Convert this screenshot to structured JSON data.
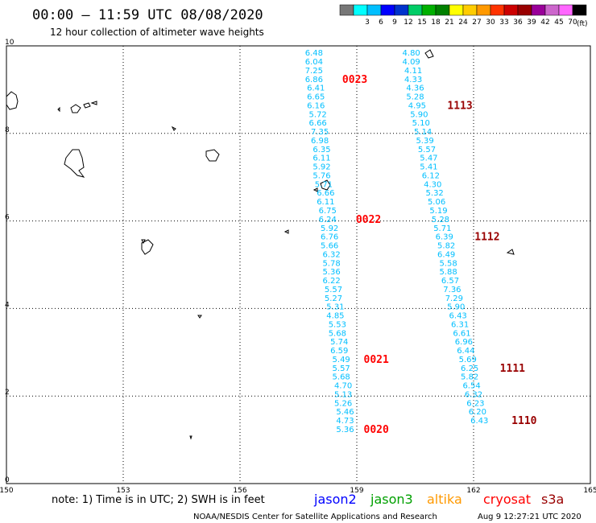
{
  "header": {
    "title": "00:00 – 11:59 UTC 08/08/2020",
    "subtitle": "12 hour collection of altimeter wave heights"
  },
  "legend": {
    "unit": "(ft)",
    "scale": [
      {
        "label": "",
        "color": "#777777"
      },
      {
        "label": "3",
        "color": "#00ffff"
      },
      {
        "label": "6",
        "color": "#00bfff"
      },
      {
        "label": "9",
        "color": "#0000ff"
      },
      {
        "label": "12",
        "color": "#0033cc"
      },
      {
        "label": "15",
        "color": "#00cc66"
      },
      {
        "label": "18",
        "color": "#00b000"
      },
      {
        "label": "21",
        "color": "#008000"
      },
      {
        "label": "24",
        "color": "#ffff00"
      },
      {
        "label": "27",
        "color": "#ffcc00"
      },
      {
        "label": "30",
        "color": "#ff9900"
      },
      {
        "label": "33",
        "color": "#ff3300"
      },
      {
        "label": "36",
        "color": "#cc0000"
      },
      {
        "label": "39",
        "color": "#990000"
      },
      {
        "label": "42",
        "color": "#990099"
      },
      {
        "label": "45",
        "color": "#cc66cc"
      },
      {
        "label": "70",
        "color": "#ff66ff"
      },
      {
        "label": "",
        "color": "#000000"
      }
    ]
  },
  "axes": {
    "x_ticks": [
      "150",
      "153",
      "156",
      "159",
      "162",
      "165"
    ],
    "y_ticks": [
      "0",
      "2",
      "4",
      "6",
      "8",
      "10"
    ],
    "x_range": [
      150,
      165
    ],
    "y_range": [
      0,
      10
    ]
  },
  "colors": {
    "value_text": "#00bfff",
    "time_west": "#ff0000",
    "time_east": "#990000"
  },
  "tracks": {
    "west": [
      {
        "v": "6.48",
        "x": 157.9,
        "y": 9.85
      },
      {
        "v": "6.04",
        "x": 157.9,
        "y": 9.65
      },
      {
        "v": "7.25",
        "x": 157.9,
        "y": 9.45
      },
      {
        "v": "6.86",
        "x": 157.9,
        "y": 9.25
      },
      {
        "v": "6.41",
        "x": 157.95,
        "y": 9.05
      },
      {
        "v": "6.65",
        "x": 157.95,
        "y": 8.85
      },
      {
        "v": "6.16",
        "x": 157.95,
        "y": 8.65
      },
      {
        "v": "5.72",
        "x": 158.0,
        "y": 8.45
      },
      {
        "v": "6.66",
        "x": 158.0,
        "y": 8.25
      },
      {
        "v": "7.35",
        "x": 158.05,
        "y": 8.05
      },
      {
        "v": "6.98",
        "x": 158.05,
        "y": 7.85
      },
      {
        "v": "6.35",
        "x": 158.1,
        "y": 7.65
      },
      {
        "v": "6.11",
        "x": 158.1,
        "y": 7.45
      },
      {
        "v": "5.92",
        "x": 158.1,
        "y": 7.25
      },
      {
        "v": "5.76",
        "x": 158.1,
        "y": 7.05
      },
      {
        "v": "5.71",
        "x": 158.15,
        "y": 6.85
      },
      {
        "v": "6.66",
        "x": 158.2,
        "y": 6.65
      },
      {
        "v": "6.11",
        "x": 158.2,
        "y": 6.45
      },
      {
        "v": "6.75",
        "x": 158.25,
        "y": 6.25
      },
      {
        "v": "6.24",
        "x": 158.25,
        "y": 6.05
      },
      {
        "v": "5.92",
        "x": 158.3,
        "y": 5.85
      },
      {
        "v": "6.76",
        "x": 158.3,
        "y": 5.65
      },
      {
        "v": "5.66",
        "x": 158.3,
        "y": 5.45
      },
      {
        "v": "6.32",
        "x": 158.35,
        "y": 5.25
      },
      {
        "v": "5.78",
        "x": 158.35,
        "y": 5.05
      },
      {
        "v": "5.36",
        "x": 158.35,
        "y": 4.85
      },
      {
        "v": "6.22",
        "x": 158.35,
        "y": 4.65
      },
      {
        "v": "5.57",
        "x": 158.4,
        "y": 4.45
      },
      {
        "v": "5.27",
        "x": 158.4,
        "y": 4.25
      },
      {
        "v": "5.31",
        "x": 158.45,
        "y": 4.05
      },
      {
        "v": "4.85",
        "x": 158.45,
        "y": 3.85
      },
      {
        "v": "5.53",
        "x": 158.5,
        "y": 3.65
      },
      {
        "v": "5.68",
        "x": 158.5,
        "y": 3.45
      },
      {
        "v": "5.74",
        "x": 158.55,
        "y": 3.25
      },
      {
        "v": "6.59",
        "x": 158.55,
        "y": 3.05
      },
      {
        "v": "5.49",
        "x": 158.6,
        "y": 2.85
      },
      {
        "v": "5.57",
        "x": 158.6,
        "y": 2.65
      },
      {
        "v": "5.68",
        "x": 158.6,
        "y": 2.45
      },
      {
        "v": "4.70",
        "x": 158.65,
        "y": 2.25
      },
      {
        "v": "5.13",
        "x": 158.65,
        "y": 2.05
      },
      {
        "v": "5.26",
        "x": 158.65,
        "y": 1.85
      },
      {
        "v": "5.46",
        "x": 158.7,
        "y": 1.65
      },
      {
        "v": "4.73",
        "x": 158.7,
        "y": 1.45
      },
      {
        "v": "5.36",
        "x": 158.7,
        "y": 1.25
      }
    ],
    "east": [
      {
        "v": "4.80",
        "x": 160.4,
        "y": 9.85
      },
      {
        "v": "4.09",
        "x": 160.4,
        "y": 9.65
      },
      {
        "v": "4.11",
        "x": 160.45,
        "y": 9.45
      },
      {
        "v": "4.33",
        "x": 160.45,
        "y": 9.25
      },
      {
        "v": "4.36",
        "x": 160.5,
        "y": 9.05
      },
      {
        "v": "5.28",
        "x": 160.5,
        "y": 8.85
      },
      {
        "v": "4.95",
        "x": 160.55,
        "y": 8.65
      },
      {
        "v": "5.90",
        "x": 160.6,
        "y": 8.45
      },
      {
        "v": "5.10",
        "x": 160.65,
        "y": 8.25
      },
      {
        "v": "5.14",
        "x": 160.7,
        "y": 8.05
      },
      {
        "v": "5.39",
        "x": 160.75,
        "y": 7.85
      },
      {
        "v": "5.57",
        "x": 160.8,
        "y": 7.65
      },
      {
        "v": "5.47",
        "x": 160.85,
        "y": 7.45
      },
      {
        "v": "5.41",
        "x": 160.85,
        "y": 7.25
      },
      {
        "v": "6.12",
        "x": 160.9,
        "y": 7.05
      },
      {
        "v": "4.30",
        "x": 160.95,
        "y": 6.85
      },
      {
        "v": "5.32",
        "x": 161.0,
        "y": 6.65
      },
      {
        "v": "5.06",
        "x": 161.05,
        "y": 6.45
      },
      {
        "v": "5.19",
        "x": 161.1,
        "y": 6.25
      },
      {
        "v": "5.28",
        "x": 161.15,
        "y": 6.05
      },
      {
        "v": "5.71",
        "x": 161.2,
        "y": 5.85
      },
      {
        "v": "6.39",
        "x": 161.25,
        "y": 5.65
      },
      {
        "v": "5.82",
        "x": 161.3,
        "y": 5.45
      },
      {
        "v": "6.49",
        "x": 161.3,
        "y": 5.25
      },
      {
        "v": "5.58",
        "x": 161.35,
        "y": 5.05
      },
      {
        "v": "5.88",
        "x": 161.35,
        "y": 4.85
      },
      {
        "v": "6.57",
        "x": 161.4,
        "y": 4.65
      },
      {
        "v": "7.36",
        "x": 161.45,
        "y": 4.45
      },
      {
        "v": "7.29",
        "x": 161.5,
        "y": 4.25
      },
      {
        "v": "5.90",
        "x": 161.55,
        "y": 4.05
      },
      {
        "v": "6.43",
        "x": 161.6,
        "y": 3.85
      },
      {
        "v": "6.31",
        "x": 161.65,
        "y": 3.65
      },
      {
        "v": "6.61",
        "x": 161.7,
        "y": 3.45
      },
      {
        "v": "6.96",
        "x": 161.75,
        "y": 3.25
      },
      {
        "v": "6.44",
        "x": 161.8,
        "y": 3.05
      },
      {
        "v": "5.69",
        "x": 161.85,
        "y": 2.85
      },
      {
        "v": "6.25",
        "x": 161.9,
        "y": 2.65
      },
      {
        "v": "5.82",
        "x": 161.9,
        "y": 2.45
      },
      {
        "v": "6.54",
        "x": 161.95,
        "y": 2.25
      },
      {
        "v": "6.32",
        "x": 162.0,
        "y": 2.05
      },
      {
        "v": "6.23",
        "x": 162.05,
        "y": 1.85
      },
      {
        "v": "6.20",
        "x": 162.1,
        "y": 1.65
      },
      {
        "v": "6.43",
        "x": 162.15,
        "y": 1.45
      }
    ]
  },
  "time_labels": {
    "west": [
      {
        "t": "0023",
        "x": 158.95,
        "y": 9.25
      },
      {
        "t": "0022",
        "x": 159.3,
        "y": 6.05
      },
      {
        "t": "0021",
        "x": 159.5,
        "y": 2.85
      },
      {
        "t": "0020",
        "x": 159.5,
        "y": 1.25
      }
    ],
    "east": [
      {
        "t": "1113",
        "x": 161.65,
        "y": 8.65
      },
      {
        "t": "1112",
        "x": 162.35,
        "y": 5.65
      },
      {
        "t": "1111",
        "x": 163.0,
        "y": 2.65
      },
      {
        "t": "1110",
        "x": 163.3,
        "y": 1.45
      }
    ]
  },
  "footer": {
    "note": "note: 1) Time is in UTC; 2) SWH is in feet",
    "satellites": [
      {
        "name": "jason2",
        "color": "#0000ff"
      },
      {
        "name": "jason3",
        "color": "#00a000"
      },
      {
        "name": "altika",
        "color": "#ff9900"
      },
      {
        "name": "cryosat",
        "color": "#ff0000"
      },
      {
        "name": "s3a",
        "color": "#990000"
      }
    ],
    "credit": "NOAA/NESDIS Center for Satellite Applications and Research",
    "timestamp": "Aug  9 12:27:21 UTC 2020"
  }
}
